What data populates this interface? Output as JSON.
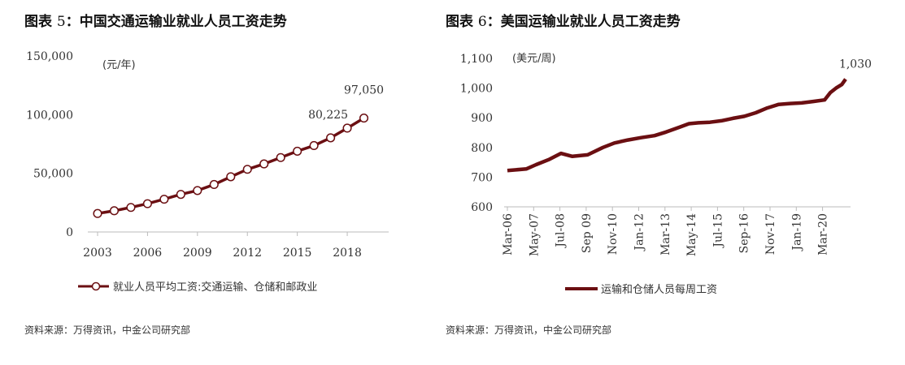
{
  "figure1": {
    "title_prefix": "图表 ",
    "title_num": "5",
    "title_text": "：中国交通运输业就业人员工资走势",
    "source": "资料来源：万得资讯，中金公司研究部"
  },
  "figure2": {
    "title_prefix": "图表 ",
    "title_num": "6",
    "title_text": "：美国运输业就业人员工资走势",
    "source": "资料来源：万得资讯，中金公司研究部"
  },
  "colors": {
    "series": "#6b0f12",
    "marker_fill": "#ffffff",
    "axis": "#bbbbbb"
  },
  "chart_data": [
    {
      "type": "line",
      "unit_label": "(元/年)",
      "x": [
        2003,
        2004,
        2005,
        2006,
        2007,
        2008,
        2009,
        2010,
        2011,
        2012,
        2013,
        2014,
        2015,
        2016,
        2017,
        2018,
        2019
      ],
      "series": [
        {
          "name": "就业人员平均工资:交通运输、仓储和邮政业",
          "values": [
            15753,
            18071,
            20911,
            24111,
            27903,
            32041,
            35315,
            40466,
            47078,
            53391,
            57993,
            63416,
            68822,
            73650,
            80225,
            88508,
            97050
          ],
          "markers": true
        }
      ],
      "x_ticks": [
        "2003",
        "2006",
        "2009",
        "2012",
        "2015",
        "2018"
      ],
      "y_ticks": [
        "0",
        "50,000",
        "100,000",
        "150,000"
      ],
      "ylim": [
        0,
        150000
      ],
      "xlim": [
        2003,
        2020
      ],
      "data_labels": [
        {
          "x": 2017,
          "y": 80225,
          "text": "80,225"
        },
        {
          "x": 2019,
          "y": 97050,
          "text": "97,050"
        }
      ],
      "legend": "bottom"
    },
    {
      "type": "line",
      "unit_label": "(美元/周)",
      "x": [
        "Mar-06",
        "Jan-07",
        "Jun-07",
        "Jan-08",
        "Jul-08",
        "Jan-09",
        "Sep-09",
        "May-10",
        "Nov-10",
        "Jun-11",
        "Jan-12",
        "Aug-12",
        "Feb-13",
        "Sep-13",
        "Feb-14",
        "Jul-14",
        "Jan-15",
        "Jul-15",
        "Jan-16",
        "Jul-16",
        "Jan-17",
        "Jul-17",
        "Jan-18",
        "Jul-18",
        "Jan-19",
        "Jul-19",
        "Jan-20",
        "Apr-20",
        "Jul-20",
        "Oct-20",
        "Dec-20"
      ],
      "series": [
        {
          "name": "运输和仓储人员每周工资",
          "values": [
            722,
            728,
            742,
            760,
            780,
            770,
            775,
            800,
            815,
            825,
            833,
            840,
            852,
            868,
            880,
            883,
            885,
            890,
            898,
            905,
            917,
            933,
            945,
            948,
            950,
            955,
            960,
            985,
            1000,
            1012,
            1030
          ]
        }
      ],
      "x_ticks": [
        "Mar-06",
        "May-07",
        "Jul-08",
        "Sep 09",
        "Nov-10",
        "Jan-12",
        "Mar-13",
        "May-14",
        "Jul-15",
        "Sep-16",
        "Nov-17",
        "Jan-19",
        "Mar-20"
      ],
      "y_ticks": [
        "600",
        "700",
        "800",
        "900",
        "1,000",
        "1,100"
      ],
      "ylim": [
        600,
        1100
      ],
      "data_labels": [
        {
          "index": 30,
          "text": "1,030"
        }
      ],
      "legend": "bottom"
    }
  ]
}
